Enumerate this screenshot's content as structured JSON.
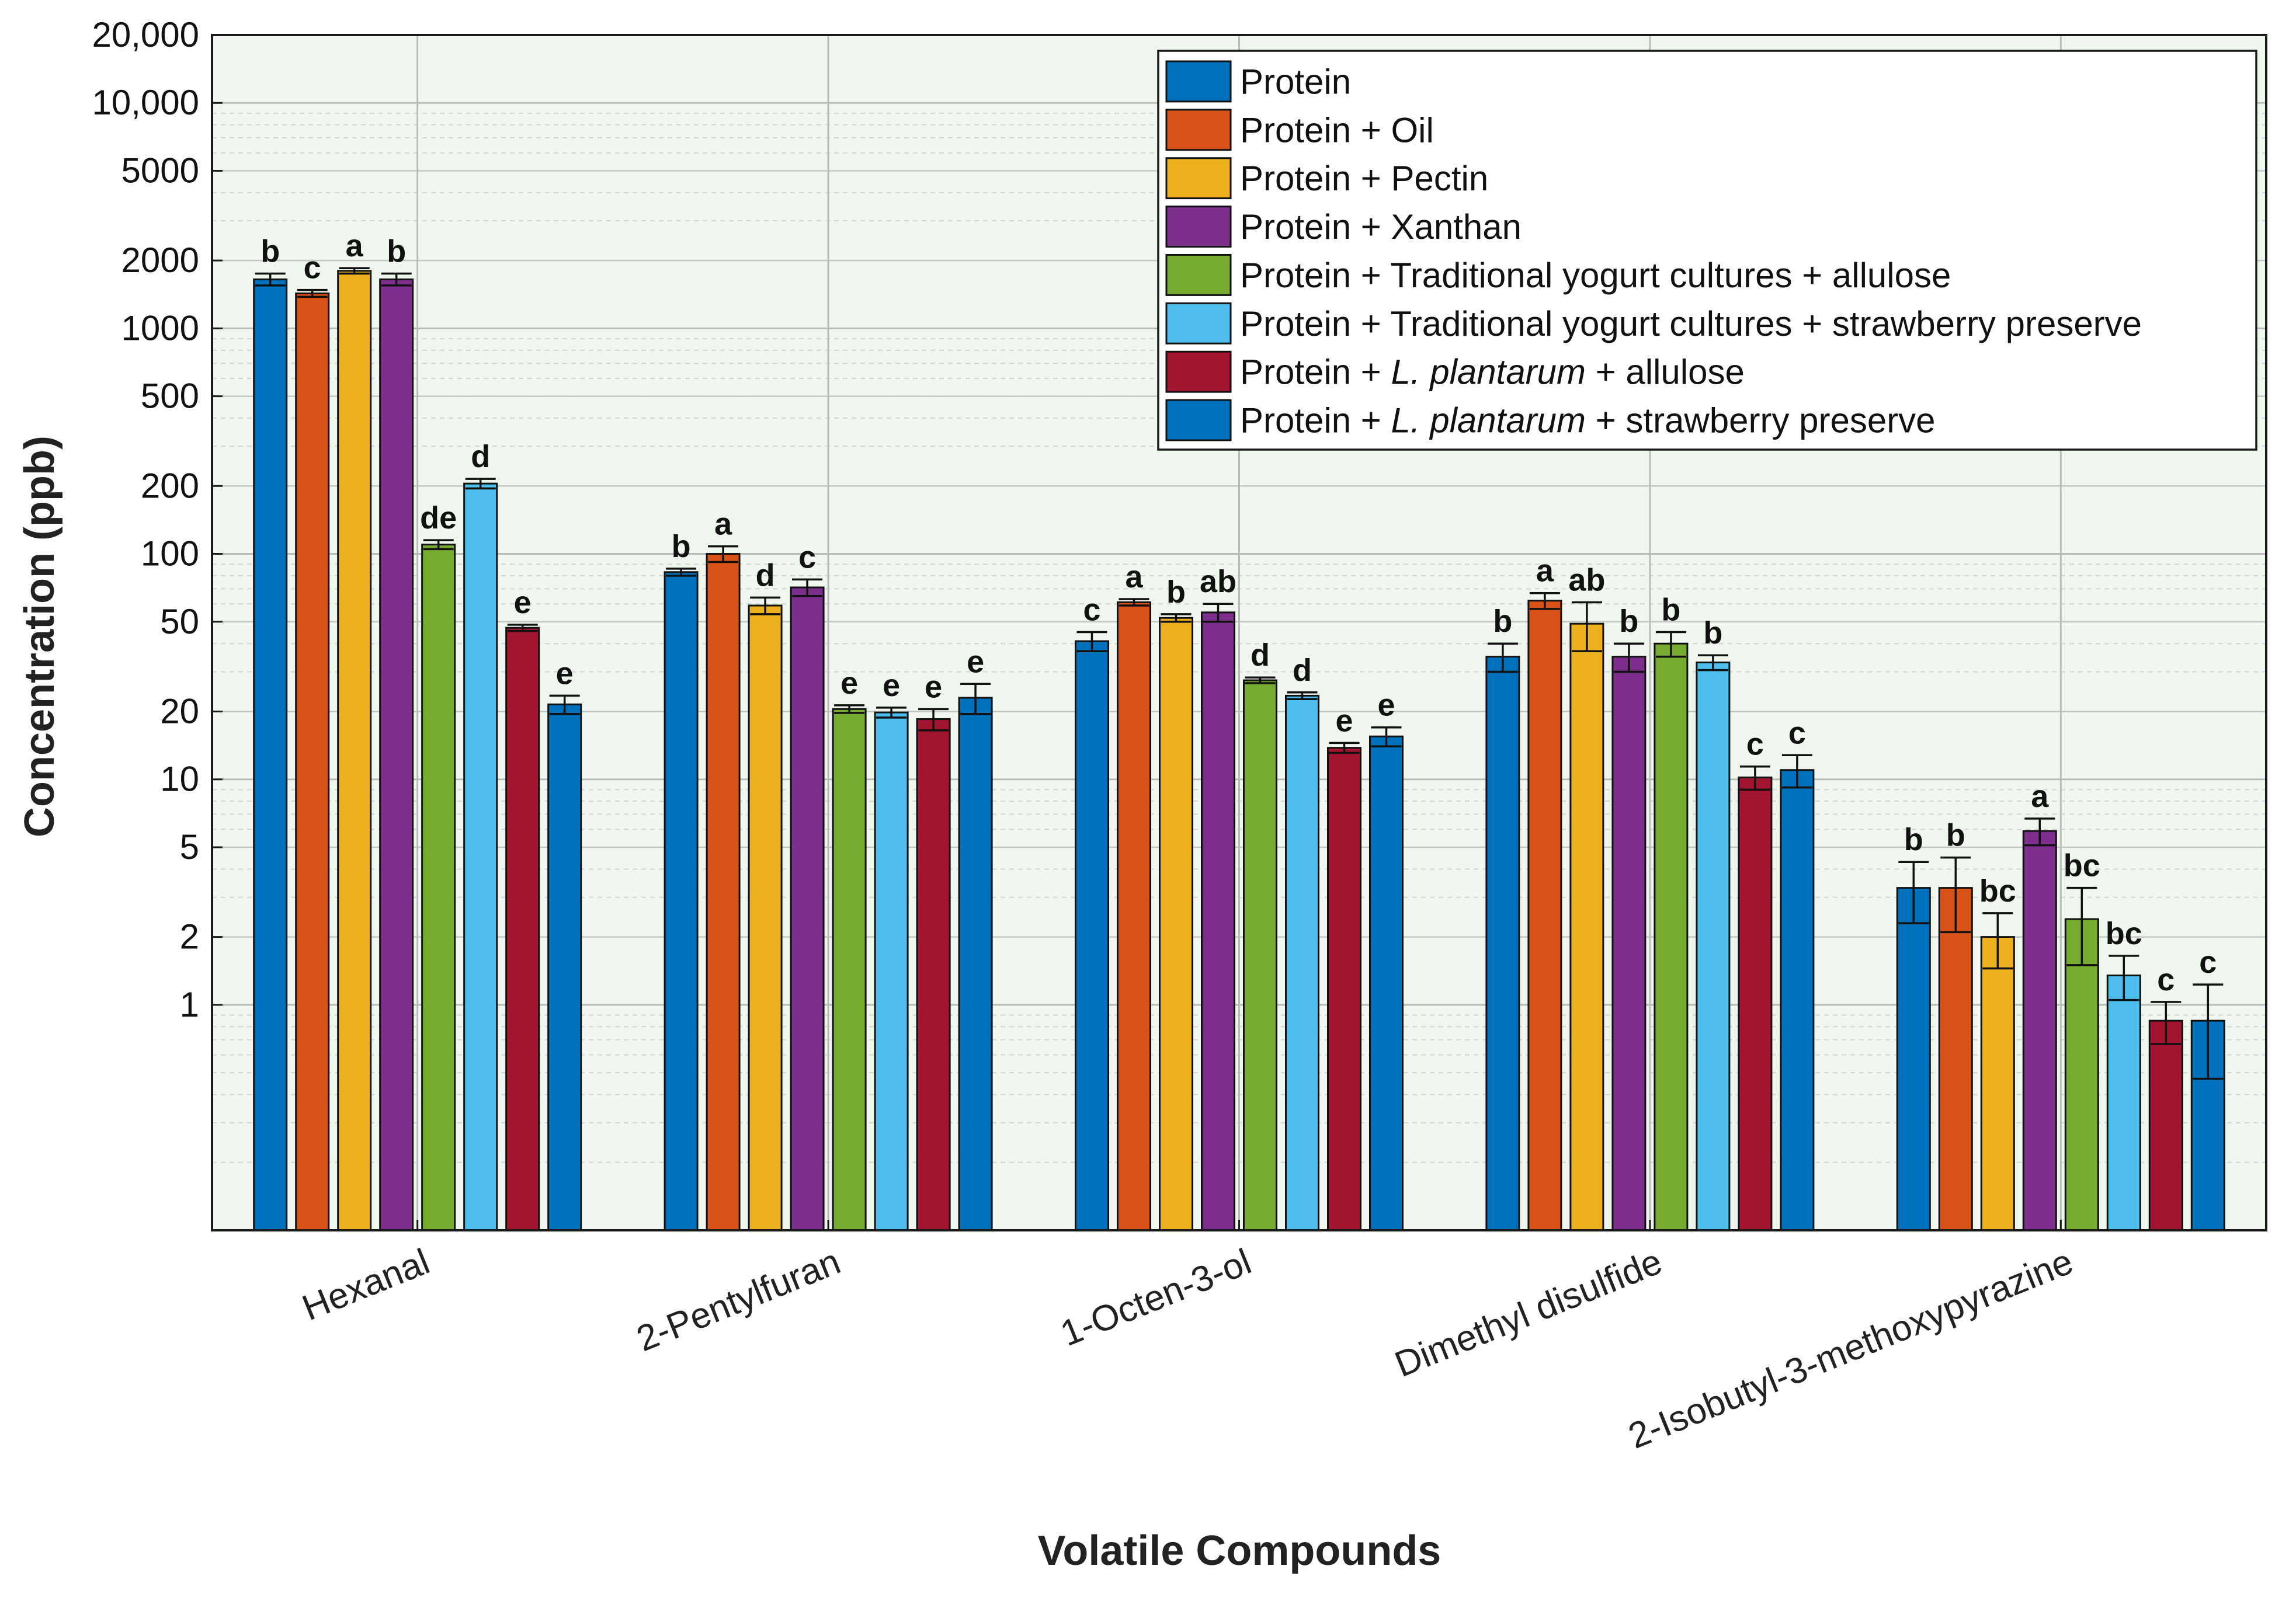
{
  "chart_data": {
    "type": "bar",
    "scale": "log",
    "xlabel": "Volatile Compounds",
    "ylabel": "Concentration (ppb)",
    "ylim": [
      0.1,
      20000
    ],
    "yticks": [
      {
        "value": 1,
        "label": "1"
      },
      {
        "value": 2,
        "label": "2"
      },
      {
        "value": 5,
        "label": "5"
      },
      {
        "value": 10,
        "label": "10"
      },
      {
        "value": 20,
        "label": "20"
      },
      {
        "value": 50,
        "label": "50"
      },
      {
        "value": 100,
        "label": "100"
      },
      {
        "value": 200,
        "label": "200"
      },
      {
        "value": 500,
        "label": "500"
      },
      {
        "value": 1000,
        "label": "1000"
      },
      {
        "value": 2000,
        "label": "2000"
      },
      {
        "value": 5000,
        "label": "5000"
      },
      {
        "value": 10000,
        "label": "10,000"
      },
      {
        "value": 20000,
        "label": "20,000"
      }
    ],
    "categories": [
      "Hexanal",
      "2-Pentylfuran",
      "1-Octen-3-ol",
      "Dimethyl disulfide",
      "2-Isobutyl-3-methoxypyrazine"
    ],
    "series": [
      {
        "name": "Protein",
        "legend": [
          "Protein"
        ],
        "color": "#0072BD",
        "values": [
          1650,
          83,
          41,
          35,
          3.3
        ],
        "errors": [
          100,
          3,
          4,
          5,
          1.0
        ],
        "letters": [
          "b",
          "b",
          "c",
          "b",
          "b"
        ]
      },
      {
        "name": "Protein + Oil",
        "legend": [
          "Protein + Oil"
        ],
        "color": "#D95319",
        "values": [
          1430,
          100,
          61,
          62,
          3.3
        ],
        "errors": [
          50,
          8,
          2,
          5,
          1.2
        ],
        "letters": [
          "c",
          "a",
          "a",
          "a",
          "b"
        ]
      },
      {
        "name": "Protein + Pectin",
        "legend": [
          "Protein + Pectin"
        ],
        "color": "#EDB120",
        "values": [
          1800,
          59,
          52,
          49,
          2.0
        ],
        "errors": [
          50,
          5,
          2,
          12,
          0.55
        ],
        "letters": [
          "a",
          "d",
          "b",
          "ab",
          "bc"
        ]
      },
      {
        "name": "Protein + Xanthan",
        "legend": [
          "Protein + Xanthan"
        ],
        "color": "#7E2F8E",
        "values": [
          1650,
          71,
          55,
          35,
          5.9
        ],
        "errors": [
          100,
          6,
          5,
          5,
          0.8
        ],
        "letters": [
          "b",
          "c",
          "ab",
          "b",
          "a"
        ]
      },
      {
        "name": "Protein + Traditional yogurt cultures + allulose",
        "legend": [
          "Protein + Traditional yogurt cultures + allulose"
        ],
        "color": "#77AC30",
        "values": [
          110,
          20.5,
          27.5,
          40,
          2.4
        ],
        "errors": [
          5,
          0.8,
          0.8,
          5,
          0.9
        ],
        "letters": [
          "de",
          "e",
          "d",
          "b",
          "bc"
        ]
      },
      {
        "name": "Protein + Traditional yogurt cultures + strawberry preserve",
        "legend": [
          "Protein + Traditional yogurt cultures + strawberry preserve"
        ],
        "color": "#4DBEEE",
        "values": [
          205,
          19.8,
          23.5,
          33,
          1.35
        ],
        "errors": [
          10,
          1,
          0.8,
          2.5,
          0.3
        ],
        "letters": [
          "d",
          "e",
          "d",
          "b",
          "bc"
        ]
      },
      {
        "name": "Protein + L. plantarum + allulose",
        "legend": [
          "Protein + ",
          "L. plantarum",
          " + allulose"
        ],
        "color": "#A2142F",
        "values": [
          47,
          18.5,
          13.8,
          10.2,
          0.85
        ],
        "errors": [
          1.5,
          2,
          0.7,
          1.2,
          0.18
        ],
        "letters": [
          "e",
          "e",
          "e",
          "c",
          "c"
        ]
      },
      {
        "name": "Protein + L. plantarum + strawberry preserve",
        "legend": [
          "Protein + ",
          "L. plantarum",
          " + strawberry preserve"
        ],
        "color": "#0072BD",
        "values": [
          21.5,
          23,
          15.5,
          11,
          0.85
        ],
        "errors": [
          2,
          3.5,
          1.5,
          1.8,
          0.38
        ],
        "letters": [
          "e",
          "e",
          "e",
          "c",
          "c"
        ]
      }
    ]
  }
}
